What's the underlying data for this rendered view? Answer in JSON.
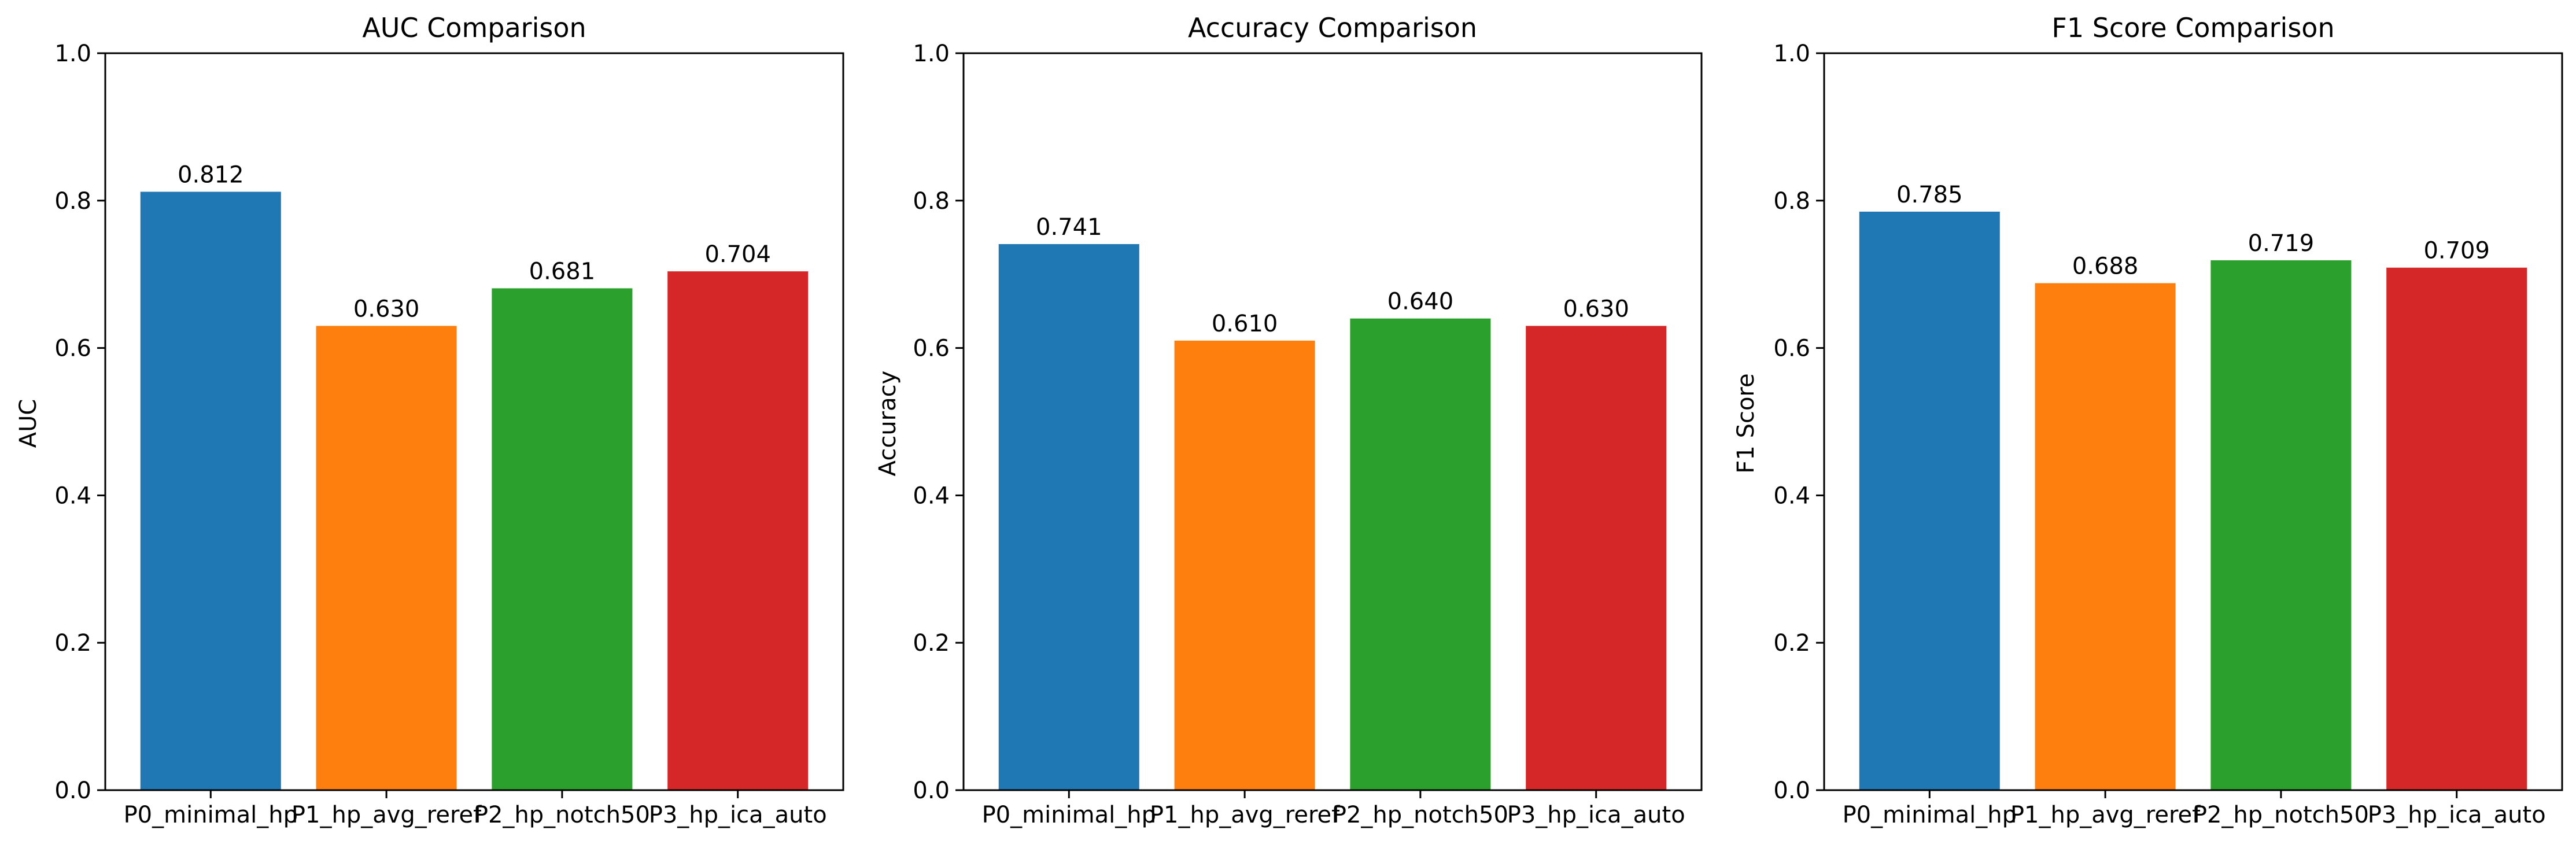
{
  "chart_data": [
    {
      "type": "bar",
      "title": "AUC Comparison",
      "xlabel": "",
      "ylabel": "AUC",
      "ylim": [
        0,
        1
      ],
      "yticks": [
        "0.0",
        "0.2",
        "0.4",
        "0.6",
        "0.8",
        "1.0"
      ],
      "categories": [
        "P0_minimal_hp",
        "P1_hp_avg_reref",
        "P2_hp_notch50",
        "P3_hp_ica_auto"
      ],
      "values": [
        0.812,
        0.63,
        0.681,
        0.704
      ],
      "value_labels": [
        "0.812",
        "0.630",
        "0.681",
        "0.704"
      ],
      "colors": [
        "#1f77b4",
        "#ff7f0e",
        "#2ca02c",
        "#d62728"
      ],
      "grid": false
    },
    {
      "type": "bar",
      "title": "Accuracy Comparison",
      "xlabel": "",
      "ylabel": "Accuracy",
      "ylim": [
        0,
        1
      ],
      "yticks": [
        "0.0",
        "0.2",
        "0.4",
        "0.6",
        "0.8",
        "1.0"
      ],
      "categories": [
        "P0_minimal_hp",
        "P1_hp_avg_reref",
        "P2_hp_notch50",
        "P3_hp_ica_auto"
      ],
      "values": [
        0.741,
        0.61,
        0.64,
        0.63
      ],
      "value_labels": [
        "0.741",
        "0.610",
        "0.640",
        "0.630"
      ],
      "colors": [
        "#1f77b4",
        "#ff7f0e",
        "#2ca02c",
        "#d62728"
      ],
      "grid": false
    },
    {
      "type": "bar",
      "title": "F1 Score Comparison",
      "xlabel": "",
      "ylabel": "F1 Score",
      "ylim": [
        0,
        1
      ],
      "yticks": [
        "0.0",
        "0.2",
        "0.4",
        "0.6",
        "0.8",
        "1.0"
      ],
      "categories": [
        "P0_minimal_hp",
        "P1_hp_avg_reref",
        "P2_hp_notch50",
        "P3_hp_ica_auto"
      ],
      "values": [
        0.785,
        0.688,
        0.719,
        0.709
      ],
      "value_labels": [
        "0.785",
        "0.688",
        "0.719",
        "0.709"
      ],
      "colors": [
        "#1f77b4",
        "#ff7f0e",
        "#2ca02c",
        "#d62728"
      ],
      "grid": false
    }
  ]
}
